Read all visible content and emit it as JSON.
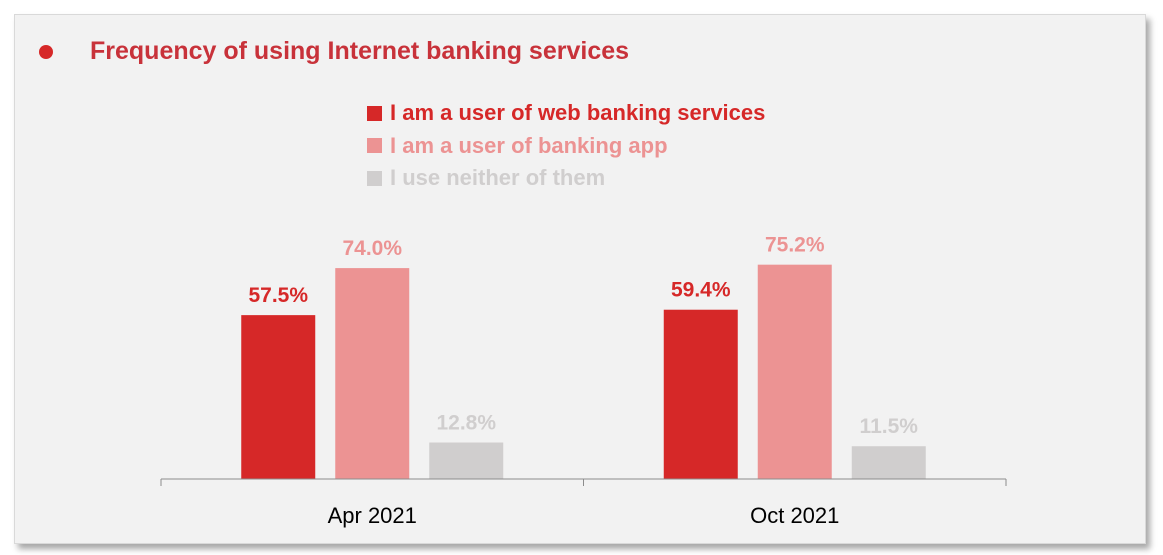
{
  "chart_data": {
    "type": "bar",
    "title": "Frequency of using Internet banking services",
    "categories": [
      "Apr 2021",
      "Oct 2021"
    ],
    "series": [
      {
        "name": "I am a user of web banking services",
        "values": [
          57.5,
          59.4
        ],
        "labels": [
          "57.5%",
          "59.4%"
        ]
      },
      {
        "name": "I am a user of banking app",
        "values": [
          74.0,
          75.2
        ],
        "labels": [
          "74.0%",
          "75.2%"
        ]
      },
      {
        "name": "I use neither of them",
        "values": [
          12.8,
          11.5
        ],
        "labels": [
          "12.8%",
          "11.5%"
        ]
      }
    ],
    "xlabel": "",
    "ylabel": "",
    "ylim": [
      0,
      100
    ],
    "grid": false,
    "legend_position": "top-center",
    "colors": [
      "#d62828",
      "#ec9393",
      "#d0cece"
    ]
  },
  "colors": {
    "accent": "#d62828",
    "title": "#c8323a",
    "label_text": "#000000"
  }
}
